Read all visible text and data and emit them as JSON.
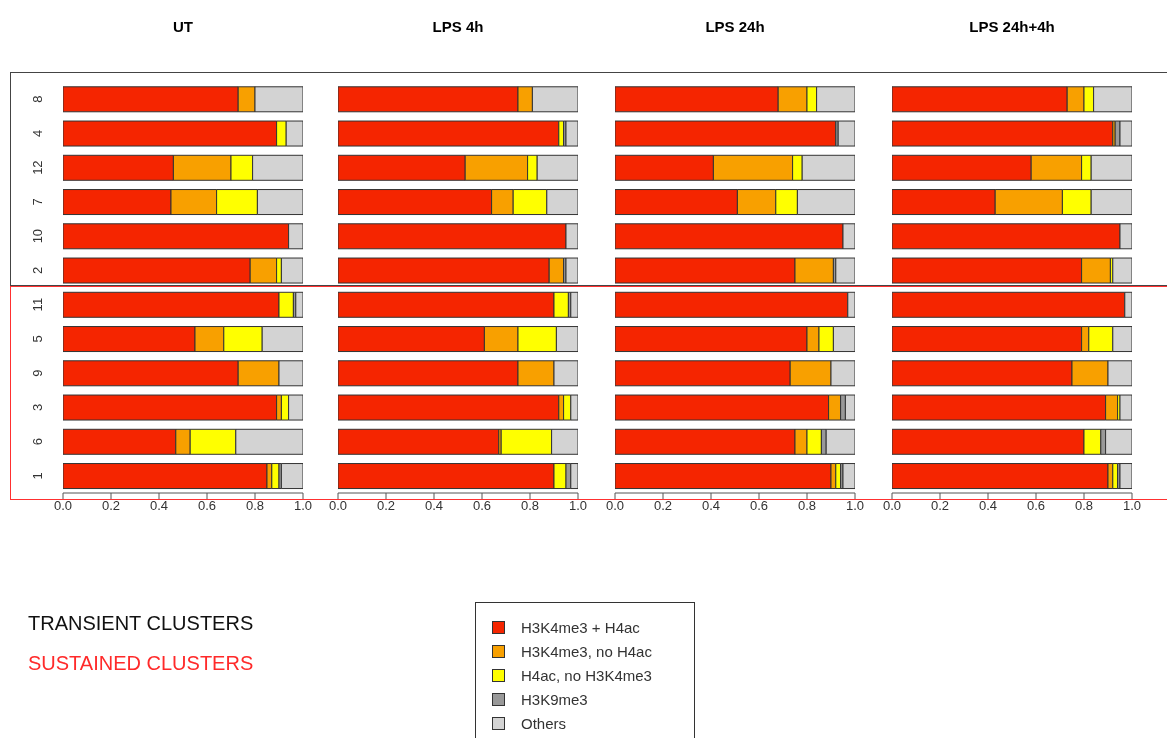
{
  "chart_data": [
    {
      "type": "bar",
      "orientation": "horizontal",
      "stacked": true,
      "title": "UT",
      "legend": "bottom",
      "annotations": [
        "TRANSIENT CLUSTERS",
        "SUSTAINED CLUSTERS"
      ],
      "categories": [
        "8",
        "4",
        "12",
        "7",
        "10",
        "2",
        "11",
        "5",
        "9",
        "3",
        "6",
        "1"
      ],
      "xlim": [
        0,
        1
      ],
      "xticks": [
        {
          "value": 0,
          "label": "0.0"
        },
        {
          "value": 0.2,
          "label": "0.2"
        },
        {
          "value": 0.4,
          "label": "0.4"
        },
        {
          "value": 0.6,
          "label": "0.6"
        },
        {
          "value": 0.8,
          "label": "0.8"
        },
        {
          "value": 1,
          "label": "1.0"
        }
      ],
      "series": [
        {
          "name": "H3K4me3 + H4ac",
          "color": "#f52500",
          "values": [
            0.73,
            0.89,
            0.46,
            0.45,
            0.94,
            0.78,
            0.9,
            0.55,
            0.73,
            0.89,
            0.47,
            0.85
          ]
        },
        {
          "name": "H3K4me3, no H4ac",
          "color": "#f8a000",
          "values": [
            0.07,
            0,
            0.24,
            0.19,
            0,
            0.11,
            0,
            0.12,
            0.17,
            0.02,
            0.06,
            0.02
          ]
        },
        {
          "name": "H4ac, no H3K4me3",
          "color": "#ffff00",
          "values": [
            0,
            0.04,
            0.09,
            0.17,
            0,
            0.02,
            0.06,
            0.16,
            0,
            0.03,
            0.19,
            0.03
          ]
        },
        {
          "name": "H3K9me3",
          "color": "#999999",
          "values": [
            0,
            0,
            0,
            0,
            0,
            0,
            0.01,
            0,
            0,
            0,
            0,
            0.01
          ]
        },
        {
          "name": "Others",
          "color": "#d3d3d3",
          "values": [
            0.2,
            0.07,
            0.21,
            0.19,
            0.06,
            0.09,
            0.03,
            0.17,
            0.1,
            0.06,
            0.28,
            0.09
          ]
        }
      ]
    },
    {
      "type": "bar",
      "orientation": "horizontal",
      "stacked": true,
      "title": "LPS 4h",
      "tick_labels": "x",
      "categories": [
        "8",
        "4",
        "12",
        "7",
        "10",
        "2",
        "11",
        "5",
        "9",
        "3",
        "6",
        "1"
      ],
      "xlim": [
        0,
        1
      ],
      "xticks": [
        {
          "value": 0,
          "label": "0.0"
        },
        {
          "value": 0.2,
          "label": "0.2"
        },
        {
          "value": 0.4,
          "label": "0.4"
        },
        {
          "value": 0.6,
          "label": "0.6"
        },
        {
          "value": 0.8,
          "label": "0.8"
        },
        {
          "value": 1,
          "label": "1.0"
        }
      ],
      "series": [
        {
          "color": "#f52500",
          "values": [
            0.75,
            0.92,
            0.53,
            0.64,
            0.95,
            0.88,
            0.9,
            0.61,
            0.75,
            0.92,
            0.67,
            0.9
          ]
        },
        {
          "color": "#f8a000",
          "values": [
            0.06,
            0,
            0.26,
            0.09,
            0,
            0.06,
            0,
            0.14,
            0.15,
            0.02,
            0.01,
            0
          ]
        },
        {
          "color": "#ffff00",
          "values": [
            0,
            0.02,
            0.04,
            0.14,
            0,
            0,
            0.06,
            0.16,
            0,
            0.03,
            0.21,
            0.05
          ]
        },
        {
          "color": "#999999",
          "values": [
            0,
            0.01,
            0,
            0,
            0,
            0.01,
            0.01,
            0,
            0,
            0,
            0,
            0.02
          ]
        },
        {
          "color": "#d3d3d3",
          "values": [
            0.19,
            0.05,
            0.17,
            0.13,
            0.05,
            0.05,
            0.03,
            0.09,
            0.1,
            0.03,
            0.11,
            0.03
          ]
        }
      ]
    },
    {
      "type": "bar",
      "orientation": "horizontal",
      "stacked": true,
      "title": "LPS 24h",
      "tick_labels": "x",
      "categories": [
        "8",
        "4",
        "12",
        "7",
        "10",
        "2",
        "11",
        "5",
        "9",
        "3",
        "6",
        "1"
      ],
      "xlim": [
        0,
        1
      ],
      "xticks": [
        {
          "value": 0,
          "label": "0.0"
        },
        {
          "value": 0.2,
          "label": "0.2"
        },
        {
          "value": 0.4,
          "label": "0.4"
        },
        {
          "value": 0.6,
          "label": "0.6"
        },
        {
          "value": 0.8,
          "label": "0.8"
        },
        {
          "value": 1,
          "label": "1.0"
        }
      ],
      "series": [
        {
          "color": "#f52500",
          "values": [
            0.68,
            0.92,
            0.41,
            0.51,
            0.95,
            0.75,
            0.97,
            0.8,
            0.73,
            0.89,
            0.75,
            0.9
          ]
        },
        {
          "color": "#f8a000",
          "values": [
            0.12,
            0,
            0.33,
            0.16,
            0,
            0.16,
            0,
            0.05,
            0.17,
            0.05,
            0.05,
            0.02
          ]
        },
        {
          "color": "#ffff00",
          "values": [
            0.04,
            0,
            0.04,
            0.09,
            0,
            0,
            0,
            0.06,
            0,
            0,
            0.06,
            0.02
          ]
        },
        {
          "color": "#999999",
          "values": [
            0,
            0.01,
            0,
            0,
            0,
            0.01,
            0,
            0,
            0,
            0.02,
            0.02,
            0.01
          ]
        },
        {
          "color": "#d3d3d3",
          "values": [
            0.16,
            0.07,
            0.22,
            0.24,
            0.05,
            0.08,
            0.03,
            0.09,
            0.1,
            0.04,
            0.12,
            0.05
          ]
        }
      ]
    },
    {
      "type": "bar",
      "orientation": "horizontal",
      "stacked": true,
      "title": "LPS 24h+4h",
      "tick_labels": "x",
      "categories": [
        "8",
        "4",
        "12",
        "7",
        "10",
        "2",
        "11",
        "5",
        "9",
        "3",
        "6",
        "1"
      ],
      "xlim": [
        0,
        1
      ],
      "xticks": [
        {
          "value": 0,
          "label": "0.0"
        },
        {
          "value": 0.2,
          "label": "0.2"
        },
        {
          "value": 0.4,
          "label": "0.4"
        },
        {
          "value": 0.6,
          "label": "0.6"
        },
        {
          "value": 0.8,
          "label": "0.8"
        },
        {
          "value": 1,
          "label": "1.0"
        }
      ],
      "series": [
        {
          "color": "#f52500",
          "values": [
            0.73,
            0.92,
            0.58,
            0.43,
            0.95,
            0.79,
            0.97,
            0.79,
            0.75,
            0.89,
            0.8,
            0.9
          ]
        },
        {
          "color": "#f8a000",
          "values": [
            0.07,
            0.01,
            0.21,
            0.28,
            0,
            0.12,
            0,
            0.03,
            0.15,
            0.05,
            0,
            0.02
          ]
        },
        {
          "color": "#ffff00",
          "values": [
            0.04,
            0,
            0.04,
            0.12,
            0,
            0.01,
            0,
            0.1,
            0,
            0.01,
            0.07,
            0.02
          ]
        },
        {
          "color": "#999999",
          "values": [
            0,
            0.02,
            0,
            0,
            0,
            0,
            0,
            0,
            0,
            0,
            0.02,
            0.01
          ]
        },
        {
          "color": "#d3d3d3",
          "values": [
            0.16,
            0.05,
            0.17,
            0.17,
            0.05,
            0.08,
            0.03,
            0.08,
            0.1,
            0.05,
            0.11,
            0.05
          ]
        }
      ]
    }
  ]
}
